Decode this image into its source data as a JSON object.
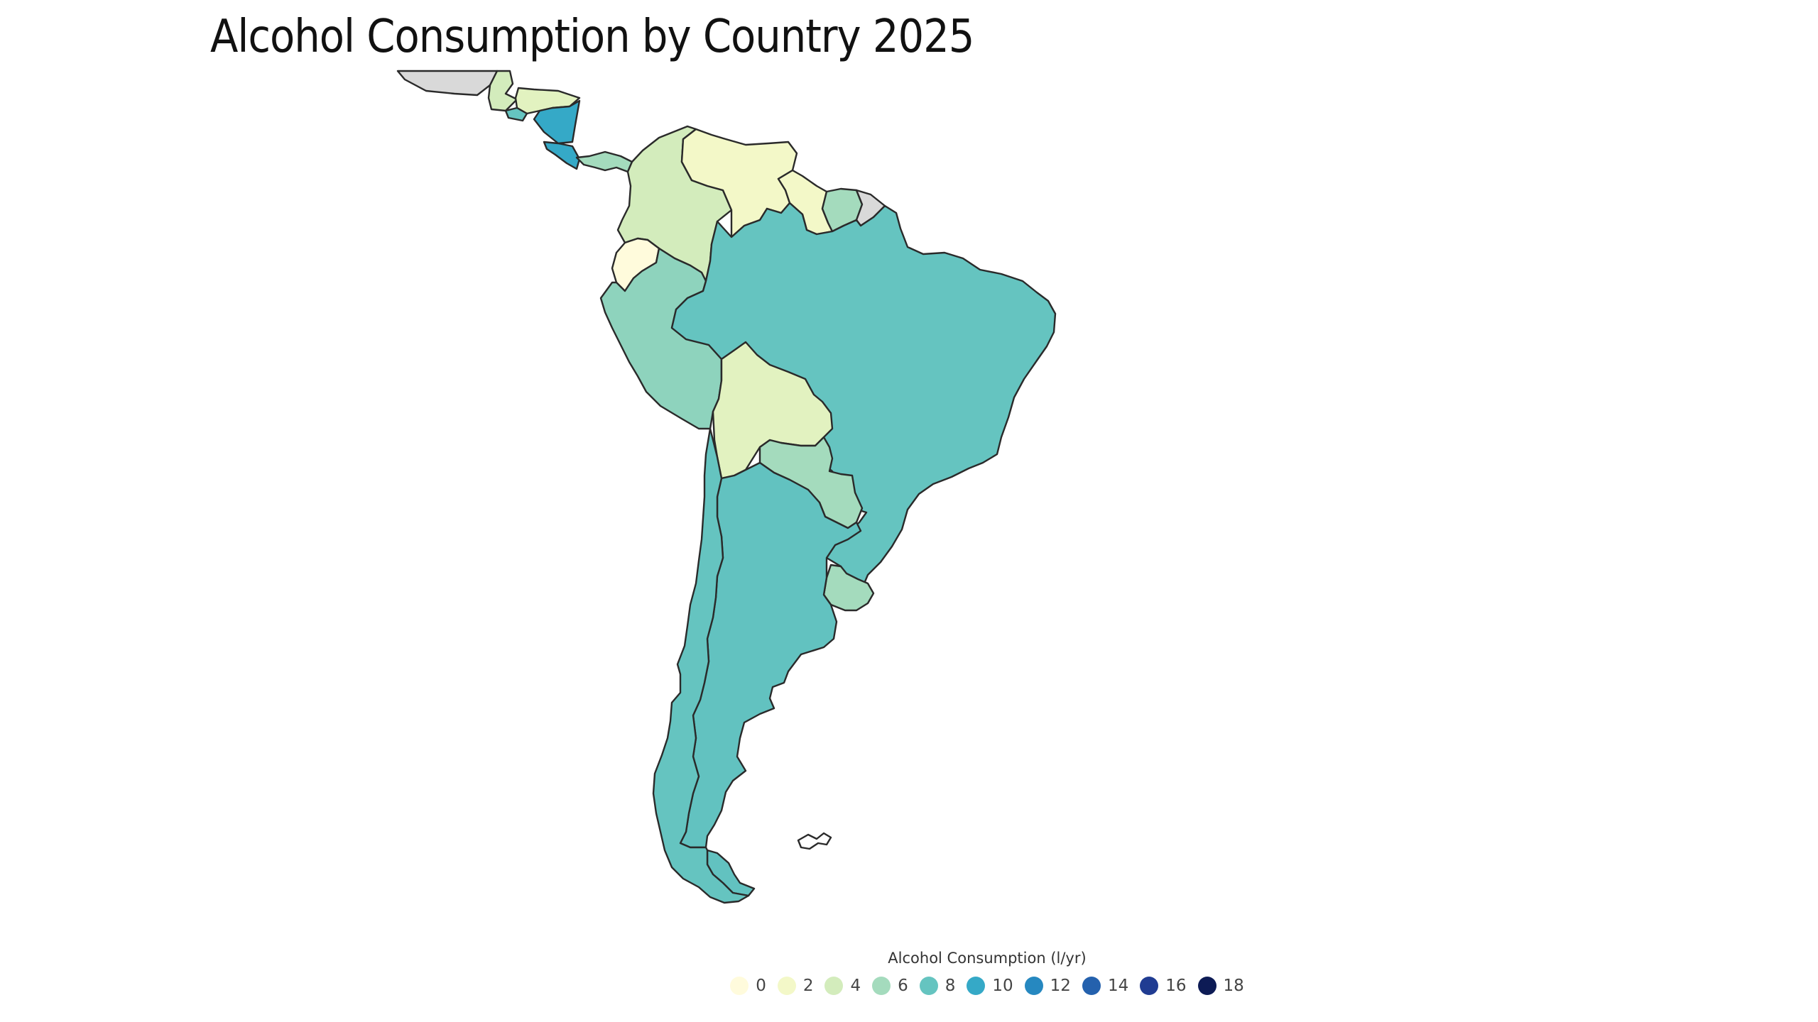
{
  "title": "Alcohol Consumption by Country 2025",
  "legend": {
    "title": "Alcohol Consumption (l/yr)",
    "items": [
      {
        "label": "0",
        "color": "#fffbdc"
      },
      {
        "label": "2",
        "color": "#f3f8c8"
      },
      {
        "label": "4",
        "color": "#d3ecbc"
      },
      {
        "label": "6",
        "color": "#a4dbbd"
      },
      {
        "label": "8",
        "color": "#65c4c0"
      },
      {
        "label": "10",
        "color": "#35a9c7"
      },
      {
        "label": "12",
        "color": "#2688c0"
      },
      {
        "label": "14",
        "color": "#2461ad"
      },
      {
        "label": "16",
        "color": "#203c92"
      },
      {
        "label": "18",
        "color": "#0d1b55"
      }
    ]
  },
  "colors": {
    "no_data": "#d9d9d9",
    "border": "#2a2a2a"
  },
  "regions": [
    {
      "id": "mexico-partial",
      "color": "#d9d9d9"
    },
    {
      "id": "guatemala",
      "color": "#d3ecbc"
    },
    {
      "id": "honduras",
      "color": "#e2f2c0"
    },
    {
      "id": "el-salvador",
      "color": "#65c4c0"
    },
    {
      "id": "nicaragua",
      "color": "#35a9c7"
    },
    {
      "id": "costa-rica",
      "color": "#35a9c7"
    },
    {
      "id": "panama",
      "color": "#a4dbbd"
    },
    {
      "id": "colombia",
      "color": "#d3ecbc"
    },
    {
      "id": "venezuela",
      "color": "#f3f8c8"
    },
    {
      "id": "guyana",
      "color": "#f3f8c8"
    },
    {
      "id": "suriname",
      "color": "#a4dbbd"
    },
    {
      "id": "french-guiana",
      "color": "#d9d9d9"
    },
    {
      "id": "ecuador",
      "color": "#fffbdc"
    },
    {
      "id": "peru",
      "color": "#8ed3bd"
    },
    {
      "id": "brazil",
      "color": "#65c4c0"
    },
    {
      "id": "bolivia",
      "color": "#e2f2c0"
    },
    {
      "id": "paraguay",
      "color": "#a4dbbd"
    },
    {
      "id": "uruguay",
      "color": "#a4dbbd"
    },
    {
      "id": "chile",
      "color": "#65c4c0"
    },
    {
      "id": "argentina",
      "color": "#62c2c0"
    },
    {
      "id": "falklands",
      "color": "#ffffff"
    }
  ]
}
